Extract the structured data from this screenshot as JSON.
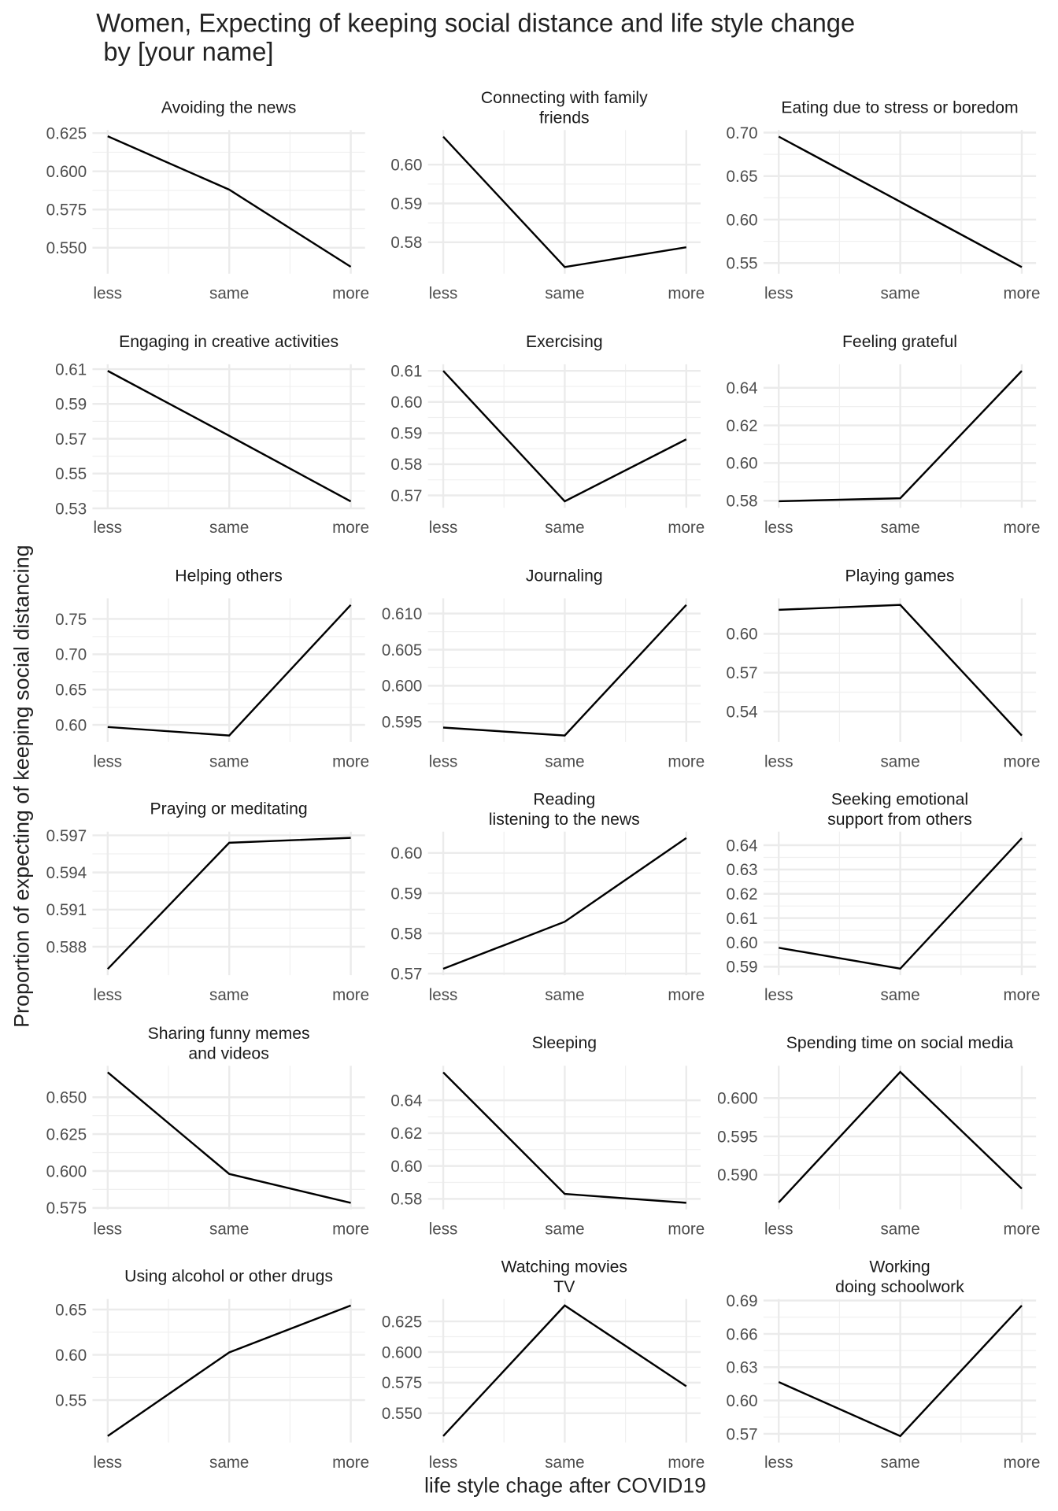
{
  "chart_data": {
    "type": "line",
    "title": "Women, Expecting of keeping social distance and life style change\n by [your name]",
    "x_label": "life style chage after COVID19",
    "y_label": "Proportion of expecting of keeping social distancing",
    "categories": [
      "less",
      "same",
      "more"
    ],
    "color": "#000000",
    "grid": true,
    "panels": [
      {
        "title": "Avoiding the news",
        "values": [
          0.623,
          0.588,
          0.5375
        ],
        "ylim": [
          0.533,
          0.627
        ],
        "yticks": [
          {
            "value": 0.55,
            "label": "0.550"
          },
          0.575,
          {
            "value": 0.6,
            "label": "0.600"
          },
          0.625
        ]
      },
      {
        "title": "Connecting with family\nfriends",
        "values": [
          0.6072,
          0.5736,
          0.5787
        ],
        "ylim": [
          0.5719,
          0.6089
        ],
        "yticks": [
          0.58,
          0.59,
          {
            "value": 0.6,
            "label": "0.60"
          }
        ]
      },
      {
        "title": "Eating due to stress or boredom",
        "values": [
          0.6954,
          0.6205,
          0.5453
        ],
        "ylim": [
          0.5378,
          0.7029
        ],
        "yticks": [
          0.55,
          {
            "value": 0.6,
            "label": "0.60"
          },
          0.65,
          {
            "value": 0.7,
            "label": "0.70"
          }
        ]
      },
      {
        "title": "Engaging in creative activities",
        "values": [
          0.609,
          0.5717,
          0.534
        ],
        "ylim": [
          0.5303,
          0.6128
        ],
        "yticks": [
          0.53,
          0.55,
          0.57,
          0.59,
          0.61
        ]
      },
      {
        "title": "Exercising",
        "values": [
          0.61,
          0.5681,
          0.588
        ],
        "ylim": [
          0.566,
          0.6121
        ],
        "yticks": [
          0.57,
          0.58,
          0.59,
          {
            "value": 0.6,
            "label": "0.60"
          },
          0.61
        ]
      },
      {
        "title": "Feeling grateful",
        "values": [
          0.5797,
          0.5813,
          0.649
        ],
        "ylim": [
          0.5762,
          0.6525
        ],
        "yticks": [
          0.58,
          {
            "value": 0.6,
            "label": "0.60"
          },
          0.62,
          0.64
        ]
      },
      {
        "title": "Helping others",
        "values": [
          0.597,
          0.585,
          0.7698
        ],
        "ylim": [
          0.5758,
          0.779
        ],
        "yticks": [
          {
            "value": 0.6,
            "label": "0.60"
          },
          0.65,
          {
            "value": 0.7,
            "label": "0.70"
          },
          0.75
        ]
      },
      {
        "title": "Journaling",
        "values": [
          0.5942,
          0.5931,
          0.6112
        ],
        "ylim": [
          0.5922,
          0.6121
        ],
        "yticks": [
          0.595,
          {
            "value": 0.6,
            "label": "0.600"
          },
          0.605,
          {
            "value": 0.61,
            "label": "0.610"
          }
        ]
      },
      {
        "title": "Playing games",
        "values": [
          0.6185,
          0.6223,
          0.5215
        ],
        "ylim": [
          0.5165,
          0.6273
        ],
        "yticks": [
          0.54,
          0.57,
          {
            "value": 0.6,
            "label": "0.60"
          }
        ]
      },
      {
        "title": "Praying or meditating",
        "values": [
          0.5862,
          0.5964,
          0.5968
        ],
        "ylim": [
          0.5857,
          0.5973
        ],
        "yticks": [
          0.588,
          0.591,
          0.594,
          0.597
        ]
      },
      {
        "title": "Reading\nlistening to the news",
        "values": [
          0.5712,
          0.5829,
          0.6037
        ],
        "ylim": [
          0.5696,
          0.6053
        ],
        "yticks": [
          0.57,
          0.58,
          0.59,
          {
            "value": 0.6,
            "label": "0.60"
          }
        ]
      },
      {
        "title": "Seeking emotional\nsupport from others",
        "values": [
          0.5978,
          0.5892,
          0.6429
        ],
        "ylim": [
          0.5865,
          0.6456
        ],
        "yticks": [
          0.59,
          {
            "value": 0.6,
            "label": "0.60"
          },
          0.61,
          0.62,
          0.63,
          0.64
        ]
      },
      {
        "title": "Sharing funny memes\nand videos",
        "values": [
          0.6669,
          0.598,
          0.5784
        ],
        "ylim": [
          0.574,
          0.6713
        ],
        "yticks": [
          0.575,
          {
            "value": 0.6,
            "label": "0.600"
          },
          0.625,
          {
            "value": 0.65,
            "label": "0.650"
          }
        ]
      },
      {
        "title": "Sleeping",
        "values": [
          0.657,
          0.583,
          0.5776
        ],
        "ylim": [
          0.5736,
          0.661
        ],
        "yticks": [
          0.58,
          {
            "value": 0.6,
            "label": "0.60"
          },
          0.62,
          0.64
        ]
      },
      {
        "title": "Spending time on social media",
        "values": [
          0.5864,
          0.6034,
          0.5882
        ],
        "ylim": [
          0.5855,
          0.6042
        ],
        "yticks": [
          {
            "value": 0.59,
            "label": "0.590"
          },
          0.595,
          {
            "value": 0.6,
            "label": "0.600"
          }
        ]
      },
      {
        "title": "Using alcohol or other drugs",
        "values": [
          0.5104,
          0.6027,
          0.6544
        ],
        "ylim": [
          0.5032,
          0.6616
        ],
        "yticks": [
          0.55,
          {
            "value": 0.6,
            "label": "0.60"
          },
          0.65
        ]
      },
      {
        "title": "Watching movies\nTV",
        "values": [
          0.5313,
          0.638,
          0.572
        ],
        "ylim": [
          0.526,
          0.6433
        ],
        "yticks": [
          {
            "value": 0.55,
            "label": "0.550"
          },
          0.575,
          {
            "value": 0.6,
            "label": "0.600"
          },
          0.625
        ]
      },
      {
        "title": "Working\ndoing schoolwork",
        "values": [
          0.6166,
          0.568,
          0.6855
        ],
        "ylim": [
          0.5621,
          0.6914
        ],
        "yticks": [
          0.57,
          {
            "value": 0.6,
            "label": "0.60"
          },
          0.63,
          0.66,
          0.69
        ]
      }
    ]
  }
}
